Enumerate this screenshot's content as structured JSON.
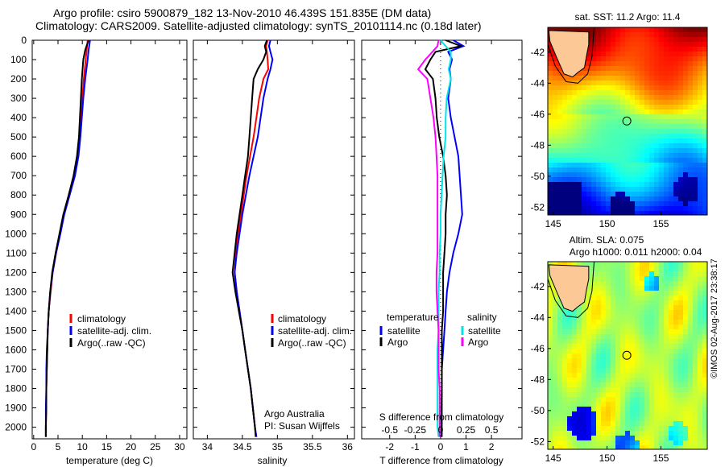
{
  "title_line1": "Argo profile: csiro 5900879_182 13-Nov-2010 46.439S 151.835E (DM data)",
  "title_line2": "Climatology: CARS2009. Satellite-adjusted climatology: synTS_20101114.nc (0.18d later)",
  "stamp": "©IMOS 02-Aug-2017 23:38:17",
  "colors": {
    "climatology": "#ff0000",
    "satellite": "#0000ff",
    "argo": "#000000",
    "sal_satellite": "#00e5e5",
    "sal_argo": "#ff00ff"
  },
  "chart_data": [
    {
      "type": "line",
      "xlabel": "temperature (deg C)",
      "ylabel": "",
      "xlim": [
        -0.3,
        31.5
      ],
      "ylim": [
        0,
        2060
      ],
      "xticks": [
        0,
        5,
        10,
        15,
        20,
        25,
        30
      ],
      "yticks": [
        0,
        100,
        200,
        300,
        400,
        500,
        600,
        700,
        800,
        900,
        1000,
        1100,
        1200,
        1300,
        1400,
        1500,
        1600,
        1700,
        1800,
        1900,
        2000
      ],
      "legend": [
        "climatology",
        "satellite-adj. clim.",
        "Argo(..raw -QC)"
      ],
      "legend_placement": "lower-right",
      "depth": [
        0,
        50,
        100,
        200,
        300,
        400,
        500,
        600,
        700,
        800,
        900,
        1000,
        1100,
        1200,
        1300,
        1400,
        1500,
        1600,
        1700,
        1800,
        1900,
        2000,
        2050
      ],
      "series": [
        {
          "name": "climatology",
          "values": [
            11.1,
            10.9,
            10.7,
            10.3,
            10.0,
            9.7,
            9.4,
            9.0,
            8.3,
            7.2,
            6.2,
            5.4,
            4.6,
            3.9,
            3.5,
            3.1,
            2.9,
            2.8,
            2.7,
            2.6,
            2.6,
            2.5,
            2.5
          ]
        },
        {
          "name": "satellite-adj. clim.",
          "values": [
            11.6,
            11.3,
            11.1,
            10.6,
            10.2,
            9.9,
            9.6,
            9.2,
            8.5,
            7.4,
            6.3,
            5.5,
            4.6,
            3.9,
            3.4,
            3.1,
            2.9,
            2.7,
            2.6,
            2.6,
            2.5,
            2.5,
            2.5
          ]
        },
        {
          "name": "Argo(..raw -QC)",
          "values": [
            11.3,
            10.6,
            10.2,
            9.9,
            9.7,
            9.5,
            9.3,
            8.9,
            8.2,
            7.2,
            6.1,
            5.3,
            4.5,
            3.8,
            3.4,
            3.1,
            2.9,
            2.8,
            2.7,
            2.6,
            2.6,
            2.5,
            2.5
          ]
        }
      ]
    },
    {
      "type": "line",
      "xlabel": "salinity",
      "xlim": [
        33.8,
        36.1
      ],
      "ylim": [
        0,
        2060
      ],
      "xticks": [
        34,
        34.5,
        35,
        35.5,
        36
      ],
      "legend": [
        "climatology",
        "satellite-adj. clim.",
        "Argo(..raw -QC)"
      ],
      "annotation": [
        "Argo Australia",
        "PI: Susan Wijffels"
      ],
      "depth": [
        0,
        30,
        60,
        100,
        150,
        200,
        300,
        400,
        500,
        600,
        700,
        800,
        900,
        1000,
        1100,
        1200,
        1300,
        1400,
        1500,
        1600,
        1700,
        1800,
        1900,
        2000,
        2050
      ],
      "series": [
        {
          "name": "climatology",
          "values": [
            34.86,
            34.84,
            34.85,
            34.86,
            34.87,
            34.8,
            34.74,
            34.7,
            34.66,
            34.61,
            34.56,
            34.52,
            34.48,
            34.44,
            34.41,
            34.39,
            34.42,
            34.46,
            34.5,
            34.54,
            34.58,
            34.62,
            34.65,
            34.68,
            34.7
          ]
        },
        {
          "name": "satellite-adj. clim.",
          "values": [
            34.9,
            34.88,
            34.9,
            34.93,
            34.9,
            34.86,
            34.8,
            34.76,
            34.72,
            34.66,
            34.6,
            34.55,
            34.5,
            34.46,
            34.42,
            34.39,
            34.42,
            34.46,
            34.5,
            34.54,
            34.58,
            34.62,
            34.65,
            34.68,
            34.7
          ]
        },
        {
          "name": "Argo(..raw -QC)",
          "values": [
            34.85,
            34.82,
            34.84,
            34.8,
            34.72,
            34.66,
            34.64,
            34.62,
            34.6,
            34.58,
            34.54,
            34.5,
            34.46,
            34.42,
            34.39,
            34.36,
            34.4,
            34.45,
            34.5,
            34.54,
            34.58,
            34.62,
            34.65,
            34.68,
            34.69
          ]
        }
      ]
    },
    {
      "type": "line",
      "xlabel": "T difference from climatology",
      "x2label": "S difference from climatology",
      "xlim": [
        -3.1,
        3.2
      ],
      "ylim": [
        0,
        2060
      ],
      "xticks": [
        -2,
        -1,
        0,
        1,
        2
      ],
      "x2ticks": [
        "-0.5",
        "-0.25",
        "0",
        "0.25",
        "0.5"
      ],
      "legend_temperature": {
        "title": "temperature",
        "items": [
          "satellite",
          "Argo"
        ]
      },
      "legend_salinity": {
        "title": "salinity",
        "items": [
          "satellite",
          "Argo"
        ]
      },
      "depth": [
        0,
        30,
        60,
        100,
        150,
        200,
        300,
        400,
        500,
        600,
        700,
        800,
        900,
        1000,
        1100,
        1200,
        1300,
        1400,
        1500,
        1600,
        1700,
        1800,
        1900,
        2000,
        2050
      ],
      "series": [
        {
          "name": "T satellite",
          "values": [
            0.5,
            0.9,
            0.3,
            0.45,
            0.35,
            0.4,
            0.3,
            0.4,
            0.55,
            0.7,
            0.75,
            0.8,
            0.85,
            0.7,
            0.5,
            0.35,
            0.25,
            0.2,
            0.15,
            0.1,
            0.05,
            0.05,
            0.05,
            0.05,
            0.05
          ]
        },
        {
          "name": "T Argo",
          "values": [
            0.2,
            0.8,
            -0.2,
            -0.4,
            -0.6,
            -0.3,
            -0.2,
            -0.15,
            -0.05,
            0.1,
            0.2,
            0.25,
            0.2,
            0.2,
            0.15,
            0.1,
            0.1,
            0.1,
            0.05,
            0.05,
            0.05,
            0.05,
            0.03,
            0.03,
            0.03
          ]
        },
        {
          "name": "S satellite",
          "values": [
            0.0,
            0.05,
            0.1,
            0.1,
            0.08,
            0.1,
            0.06,
            0.05,
            0.05,
            0.03,
            0.02,
            0.01,
            0.0,
            0.0,
            -0.01,
            -0.01,
            -0.02,
            -0.02,
            -0.02,
            -0.03,
            -0.03,
            -0.03,
            -0.03,
            -0.03,
            -0.02
          ]
        },
        {
          "name": "S Argo",
          "values": [
            -0.02,
            -0.03,
            -0.08,
            -0.15,
            -0.22,
            -0.13,
            -0.1,
            -0.07,
            -0.05,
            -0.04,
            -0.03,
            -0.03,
            -0.03,
            -0.03,
            -0.03,
            -0.04,
            -0.04,
            -0.03,
            -0.02,
            -0.02,
            -0.02,
            -0.01,
            -0.01,
            -0.01,
            -0.01
          ]
        }
      ]
    },
    {
      "type": "heatmap",
      "title": "sat. SST: 11.2 Argo: 11.4",
      "xlim": [
        144.5,
        159.3
      ],
      "ylim": [
        -52.5,
        -40.4
      ],
      "xticks": [
        145,
        150,
        155
      ],
      "yticks": [
        -42,
        -44,
        -46,
        -48,
        -50,
        -52
      ],
      "marker": {
        "lon": 151.835,
        "lat": -46.439
      }
    },
    {
      "type": "heatmap",
      "title_line1": "Altim. SLA: 0.075",
      "title_line2": "Argo h1000: 0.011 h2000: 0.04",
      "xlim": [
        144.5,
        159.3
      ],
      "ylim": [
        -52.5,
        -40.4
      ],
      "xticks": [
        145,
        150,
        155
      ],
      "yticks": [
        -42,
        -44,
        -46,
        -48,
        -50,
        -52
      ],
      "marker": {
        "lon": 151.835,
        "lat": -46.439
      }
    }
  ]
}
